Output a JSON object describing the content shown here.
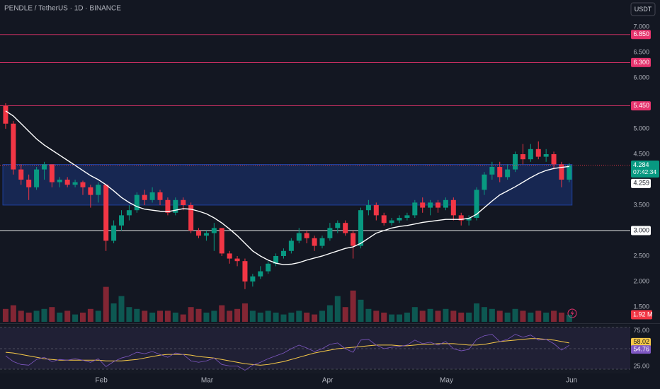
{
  "chart_data": {
    "type": "candlestick",
    "title": "PENDLE / TetherUS · 1D · BINANCE",
    "currency": "USDT",
    "countdown": "07:42:34",
    "up_color": "#089981",
    "down_color": "#f23645",
    "xlim": [
      -0.73,
      80.9
    ],
    "xticks": [
      {
        "value": 12.4,
        "label": "Feb"
      },
      {
        "value": 26.1,
        "label": "Mar"
      },
      {
        "value": 41.7,
        "label": "Apr"
      },
      {
        "value": 57.1,
        "label": "May"
      },
      {
        "value": 73.3,
        "label": "Jun"
      }
    ],
    "ylim": [
      1.208,
      7.528
    ],
    "yticks": [
      {
        "value": 1.5,
        "label": "1.500"
      },
      {
        "value": 2,
        "label": "2.000"
      },
      {
        "value": 2.5,
        "label": "2.500"
      },
      {
        "value": 3.5,
        "label": "3.500"
      },
      {
        "value": 4.5,
        "label": "4.500"
      },
      {
        "value": 5,
        "label": "5.000"
      },
      {
        "value": 6,
        "label": "6.000"
      },
      {
        "value": 6.5,
        "label": "6.500"
      },
      {
        "value": 7,
        "label": "7.000"
      }
    ],
    "open": [
      5.45,
      5.1,
      4.2,
      4.0,
      3.85,
      4.2,
      4.3,
      3.95,
      4.0,
      3.9,
      3.95,
      3.85,
      3.7,
      3.9,
      2.8,
      3.1,
      3.3,
      3.4,
      3.7,
      3.6,
      3.75,
      3.6,
      3.35,
      3.6,
      3.5,
      3.0,
      2.9,
      2.95,
      3.05,
      2.55,
      2.45,
      2.4,
      2.0,
      2.1,
      2.2,
      2.35,
      2.5,
      2.6,
      2.8,
      2.95,
      2.85,
      2.7,
      2.85,
      3.05,
      3.15,
      2.95,
      2.7,
      3.4,
      3.5,
      3.3,
      3.15,
      3.2,
      3.25,
      3.3,
      3.55,
      3.45,
      3.55,
      3.45,
      3.6,
      3.3,
      3.2,
      3.25,
      3.8,
      4.1,
      4.25,
      4.05,
      4.2,
      4.5,
      4.4,
      4.6,
      4.45,
      4.5,
      4.3,
      4.0
    ],
    "high": [
      5.5,
      5.15,
      4.3,
      4.1,
      4.25,
      4.35,
      4.3,
      4.05,
      4.05,
      4.0,
      3.98,
      3.9,
      3.95,
      3.9,
      3.2,
      3.4,
      3.5,
      3.75,
      3.8,
      3.85,
      3.8,
      3.65,
      3.65,
      3.65,
      3.55,
      3.05,
      3.0,
      3.15,
      3.05,
      2.6,
      2.5,
      2.45,
      2.15,
      2.3,
      2.4,
      2.55,
      2.65,
      2.85,
      3.05,
      3.0,
      2.9,
      2.9,
      3.15,
      3.2,
      3.2,
      3.0,
      3.45,
      3.6,
      3.55,
      3.35,
      3.25,
      3.3,
      3.35,
      3.6,
      3.65,
      3.6,
      3.6,
      3.65,
      3.65,
      3.35,
      3.3,
      3.85,
      4.15,
      4.35,
      4.35,
      4.3,
      4.55,
      4.7,
      4.7,
      4.75,
      4.6,
      4.55,
      4.35,
      4.32
    ],
    "low": [
      5.0,
      4.1,
      3.9,
      3.6,
      3.8,
      4.0,
      3.85,
      3.85,
      3.85,
      3.85,
      3.7,
      3.45,
      3.55,
      2.6,
      2.75,
      3.0,
      3.2,
      3.35,
      3.5,
      3.55,
      3.5,
      3.3,
      3.3,
      3.4,
      2.95,
      2.85,
      2.8,
      2.6,
      2.5,
      2.35,
      2.3,
      1.85,
      1.9,
      2.05,
      2.15,
      2.3,
      2.45,
      2.55,
      2.75,
      2.75,
      2.6,
      2.65,
      2.8,
      2.95,
      2.9,
      2.45,
      2.65,
      3.3,
      3.2,
      3.1,
      3.1,
      3.15,
      3.2,
      3.25,
      3.35,
      3.3,
      3.35,
      3.4,
      3.2,
      3.1,
      3.1,
      3.2,
      3.7,
      4.0,
      3.95,
      4.0,
      4.15,
      4.3,
      4.35,
      4.4,
      4.35,
      4.2,
      3.85,
      3.95
    ],
    "close": [
      5.1,
      4.2,
      4.0,
      3.85,
      4.2,
      4.3,
      3.95,
      4.0,
      3.9,
      3.95,
      3.85,
      3.7,
      3.9,
      2.8,
      3.1,
      3.3,
      3.4,
      3.7,
      3.6,
      3.75,
      3.6,
      3.35,
      3.6,
      3.5,
      3.0,
      2.9,
      2.95,
      3.05,
      2.55,
      2.45,
      2.4,
      2.0,
      2.1,
      2.2,
      2.35,
      2.5,
      2.6,
      2.8,
      2.95,
      2.85,
      2.7,
      2.85,
      3.05,
      3.15,
      2.95,
      2.7,
      3.4,
      3.5,
      3.3,
      3.15,
      3.2,
      3.25,
      3.3,
      3.55,
      3.45,
      3.55,
      3.45,
      3.6,
      3.3,
      3.2,
      3.25,
      3.8,
      4.1,
      4.25,
      4.05,
      4.2,
      4.5,
      4.4,
      4.6,
      4.45,
      4.5,
      4.3,
      4.0,
      4.284
    ],
    "hlines": [
      {
        "value": 6.85,
        "label": "6.850",
        "color": "#e5336d"
      },
      {
        "value": 6.3,
        "label": "6.300",
        "color": "#e5336d"
      },
      {
        "value": 5.45,
        "label": "5.450",
        "color": "#e5336d"
      },
      {
        "value": 3,
        "label": "3.000",
        "color": "#ffffff"
      }
    ],
    "zone": {
      "low": 3.5,
      "high": 4.3,
      "color": "#2962ff"
    },
    "sma": {
      "color": "#ffffff",
      "values": [
        5.35,
        5.25,
        5.1,
        4.95,
        4.8,
        4.68,
        4.58,
        4.48,
        4.38,
        4.28,
        4.18,
        4.08,
        4.0,
        3.9,
        3.78,
        3.65,
        3.55,
        3.47,
        3.42,
        3.4,
        3.38,
        3.37,
        3.4,
        3.43,
        3.42,
        3.38,
        3.33,
        3.25,
        3.15,
        3.03,
        2.9,
        2.75,
        2.6,
        2.5,
        2.42,
        2.36,
        2.33,
        2.34,
        2.37,
        2.42,
        2.46,
        2.5,
        2.55,
        2.6,
        2.65,
        2.68,
        2.75,
        2.85,
        2.95,
        3.0,
        3.05,
        3.08,
        3.1,
        3.13,
        3.16,
        3.18,
        3.2,
        3.22,
        3.22,
        3.22,
        3.24,
        3.32,
        3.45,
        3.58,
        3.7,
        3.78,
        3.86,
        3.95,
        4.04,
        4.12,
        4.18,
        4.22,
        4.24,
        4.259
      ]
    },
    "volume": {
      "ylim": [
        0,
        10
      ],
      "last_label": "1.92 M",
      "values": [
        3.5,
        4.5,
        3,
        2.5,
        3,
        3.5,
        4,
        2.5,
        3,
        2,
        2.5,
        3.5,
        3,
        9.5,
        5,
        7,
        4,
        3.5,
        3,
        2.5,
        3,
        3,
        2.5,
        2,
        4,
        3.5,
        2.5,
        3,
        4.5,
        3,
        3.5,
        5,
        3,
        2.5,
        3,
        2.5,
        2,
        2.5,
        3,
        2.5,
        2,
        3,
        4.5,
        7,
        4,
        8.5,
        6,
        3.5,
        3,
        2.5,
        2,
        2,
        2.5,
        4,
        3,
        3.5,
        3,
        3.5,
        3,
        2.5,
        2.5,
        5,
        4,
        3.5,
        3,
        2.5,
        3.5,
        3,
        2.5,
        3,
        2.5,
        3,
        2.5,
        1.92
      ]
    },
    "rsi": {
      "color": "#7e57c2",
      "ma_color": "#f7c948",
      "ylim": [
        15.5,
        83.5
      ],
      "yticks": [
        {
          "value": 75,
          "label": "75.00"
        },
        {
          "value": 25,
          "label": "25.00"
        }
      ],
      "values": [
        40,
        32,
        28,
        27,
        35,
        38,
        32,
        35,
        34,
        36,
        34,
        31,
        36,
        25,
        32,
        37,
        40,
        45,
        43,
        46,
        42,
        38,
        44,
        42,
        33,
        31,
        33,
        37,
        28,
        26,
        26,
        20,
        27,
        31,
        36,
        40,
        44,
        50,
        55,
        51,
        46,
        50,
        56,
        58,
        50,
        45,
        62,
        63,
        55,
        50,
        52,
        53,
        55,
        62,
        57,
        59,
        55,
        60,
        50,
        47,
        49,
        63,
        68,
        70,
        60,
        63,
        70,
        66,
        69,
        62,
        63,
        57,
        48,
        54.76
      ],
      "ma_values": [
        45,
        44,
        42,
        40,
        38,
        36,
        35,
        34,
        34,
        34,
        34,
        34,
        34,
        33,
        33,
        33,
        34,
        35,
        37,
        39,
        41,
        42,
        42,
        42,
        41,
        39,
        38,
        37,
        35,
        33,
        31,
        29,
        28,
        27,
        28,
        30,
        32,
        35,
        38,
        41,
        44,
        46,
        48,
        50,
        51,
        52,
        53,
        54,
        55,
        55,
        55,
        54,
        54,
        55,
        56,
        56,
        57,
        57,
        57,
        56,
        55,
        55,
        56,
        58,
        60,
        61,
        62,
        63,
        64,
        64,
        63,
        62,
        60,
        58.02
      ]
    }
  }
}
